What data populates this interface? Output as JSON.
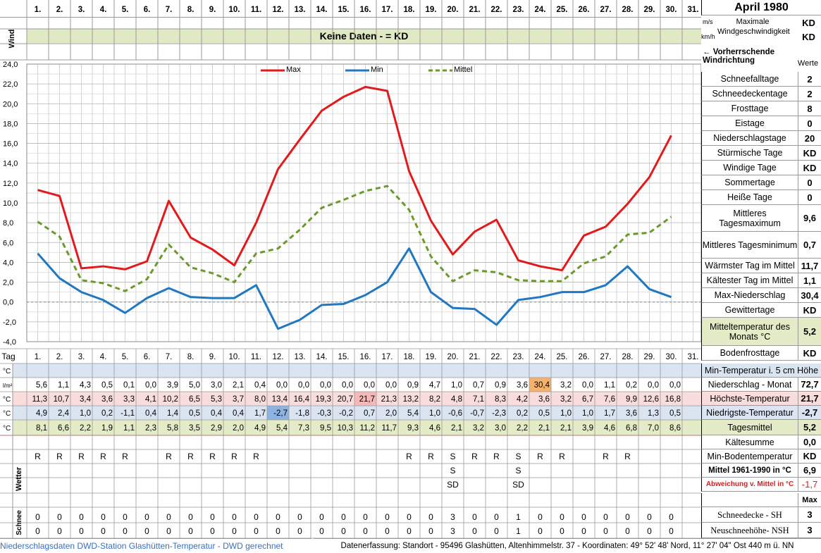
{
  "title": "April 1980",
  "days": [
    "1.",
    "2.",
    "3.",
    "4.",
    "5.",
    "6.",
    "7.",
    "8.",
    "9.",
    "10.",
    "11.",
    "12.",
    "13.",
    "14.",
    "15.",
    "16.",
    "17.",
    "18.",
    "19.",
    "20.",
    "21.",
    "22.",
    "23.",
    "24.",
    "25.",
    "26.",
    "27.",
    "28.",
    "29.",
    "30.",
    "31."
  ],
  "wind": {
    "side_label": "Wind",
    "banner": "Keine Daten -  = KD",
    "unit_ms": "m/s",
    "unit_kmh": "km/h",
    "max_label": "Maximale Windgeschwindigkeit",
    "max_ms": "KD",
    "max_kmh": "KD",
    "direction": "← Vorherrschende Windrichtung"
  },
  "chart_data": {
    "type": "line",
    "x": [
      1,
      2,
      3,
      4,
      5,
      6,
      7,
      8,
      9,
      10,
      11,
      12,
      13,
      14,
      15,
      16,
      17,
      18,
      19,
      20,
      21,
      22,
      23,
      24,
      25,
      26,
      27,
      28,
      29,
      30
    ],
    "ylim": [
      -4,
      24
    ],
    "yticks": [
      "24,0",
      "22,0",
      "20,0",
      "18,0",
      "16,0",
      "14,0",
      "12,0",
      "10,0",
      "8,0",
      "6,0",
      "4,0",
      "2,0",
      "0,0",
      "-2,0",
      "-4,0"
    ],
    "series": [
      {
        "name": "Max",
        "color": "#e31a1c",
        "style": "solid",
        "values": [
          11.3,
          10.7,
          3.4,
          3.6,
          3.3,
          4.1,
          10.2,
          6.5,
          5.3,
          3.7,
          8.0,
          13.4,
          16.4,
          19.3,
          20.7,
          21.7,
          21.3,
          13.2,
          8.2,
          4.8,
          7.1,
          8.3,
          4.2,
          3.6,
          3.2,
          6.7,
          7.6,
          9.9,
          12.6,
          16.8
        ]
      },
      {
        "name": "Min",
        "color": "#1f78c1",
        "style": "solid",
        "values": [
          4.9,
          2.4,
          1.0,
          0.2,
          -1.1,
          0.4,
          1.4,
          0.5,
          0.4,
          0.4,
          1.7,
          -2.7,
          -1.8,
          -0.3,
          -0.2,
          0.7,
          2.0,
          5.4,
          1.0,
          -0.6,
          -0.7,
          -2.3,
          0.2,
          0.5,
          1.0,
          1.0,
          1.7,
          3.6,
          1.3,
          0.5
        ]
      },
      {
        "name": "Mittel",
        "color": "#6a9a2a",
        "style": "dashed",
        "values": [
          8.1,
          6.6,
          2.2,
          1.9,
          1.1,
          2.3,
          5.8,
          3.5,
          2.9,
          2.0,
          4.9,
          5.4,
          7.3,
          9.5,
          10.3,
          11.2,
          11.7,
          9.3,
          4.6,
          2.1,
          3.2,
          3.0,
          2.2,
          2.1,
          2.1,
          3.9,
          4.6,
          6.8,
          7.0,
          8.6
        ]
      }
    ]
  },
  "table": {
    "tag_label": "Tag",
    "unit_c": "°C",
    "unit_lm2": "l/m²",
    "niederschlag": [
      "5,6",
      "1,1",
      "4,3",
      "0,5",
      "0,1",
      "0,0",
      "3,9",
      "5,0",
      "3,0",
      "2,1",
      "0,4",
      "0,0",
      "0,0",
      "0,0",
      "0,0",
      "0,0",
      "0,0",
      "0,9",
      "4,7",
      "1,0",
      "0,7",
      "0,9",
      "3,6",
      "30,4",
      "3,2",
      "0,0",
      "1,1",
      "0,2",
      "0,0",
      "0,0"
    ],
    "hoechst": [
      "11,3",
      "10,7",
      "3,4",
      "3,6",
      "3,3",
      "4,1",
      "10,2",
      "6,5",
      "5,3",
      "3,7",
      "8,0",
      "13,4",
      "16,4",
      "19,3",
      "20,7",
      "21,7",
      "21,3",
      "13,2",
      "8,2",
      "4,8",
      "7,1",
      "8,3",
      "4,2",
      "3,6",
      "3,2",
      "6,7",
      "7,6",
      "9,9",
      "12,6",
      "16,8"
    ],
    "niedrigst": [
      "4,9",
      "2,4",
      "1,0",
      "0,2",
      "-1,1",
      "0,4",
      "1,4",
      "0,5",
      "0,4",
      "0,4",
      "1,7",
      "-2,7",
      "-1,8",
      "-0,3",
      "-0,2",
      "0,7",
      "2,0",
      "5,4",
      "1,0",
      "-0,6",
      "-0,7",
      "-2,3",
      "0,2",
      "0,5",
      "1,0",
      "1,0",
      "1,7",
      "3,6",
      "1,3",
      "0,5"
    ],
    "mittel": [
      "8,1",
      "6,6",
      "2,2",
      "1,9",
      "1,1",
      "2,3",
      "5,8",
      "3,5",
      "2,9",
      "2,0",
      "4,9",
      "5,4",
      "7,3",
      "9,5",
      "10,3",
      "11,2",
      "11,7",
      "9,3",
      "4,6",
      "2,1",
      "3,2",
      "3,0",
      "2,2",
      "2,1",
      "2,1",
      "3,9",
      "4,6",
      "6,8",
      "7,0",
      "8,6"
    ],
    "wetter_side": "Wetter",
    "wetter1": [
      "R",
      "R",
      "R",
      "R",
      "R",
      "",
      "R",
      "R",
      "R",
      "R",
      "R",
      "",
      "",
      "",
      "",
      "",
      "",
      "R",
      "R",
      "S",
      "R",
      "R",
      "S",
      "R",
      "R",
      "",
      "R",
      "R",
      "",
      ""
    ],
    "wetter2": [
      "",
      "",
      "",
      "",
      "",
      "",
      "",
      "",
      "",
      "",
      "",
      "",
      "",
      "",
      "",
      "",
      "",
      "",
      "",
      "S",
      "",
      "",
      "S",
      "",
      "",
      "",
      "",
      "",
      "",
      ""
    ],
    "wetter3": [
      "",
      "",
      "",
      "",
      "",
      "",
      "",
      "",
      "",
      "",
      "",
      "",
      "",
      "",
      "",
      "",
      "",
      "",
      "",
      "SD",
      "",
      "",
      "SD",
      "",
      "",
      "",
      "",
      "",
      "",
      ""
    ],
    "schnee_side": "Schnee",
    "schneedecke": [
      "0",
      "0",
      "0",
      "0",
      "0",
      "0",
      "0",
      "0",
      "0",
      "0",
      "0",
      "0",
      "0",
      "0",
      "0",
      "0",
      "0",
      "0",
      "0",
      "3",
      "0",
      "0",
      "1",
      "0",
      "0",
      "0",
      "0",
      "0",
      "0",
      "0"
    ],
    "neuschnee": [
      "0",
      "0",
      "0",
      "0",
      "0",
      "0",
      "0",
      "0",
      "0",
      "0",
      "0",
      "0",
      "0",
      "0",
      "0",
      "0",
      "0",
      "0",
      "0",
      "3",
      "0",
      "0",
      "1",
      "0",
      "0",
      "0",
      "0",
      "0",
      "0",
      "0"
    ]
  },
  "stats": {
    "werte": "Werte",
    "items": [
      {
        "label": "Schneefalltage",
        "value": "2"
      },
      {
        "label": "Schneedeckentage",
        "value": "2"
      },
      {
        "label": "Frosttage",
        "value": "8"
      },
      {
        "label": "Eistage",
        "value": "0"
      },
      {
        "label": "Niederschlagstage",
        "value": "20"
      },
      {
        "label": "Stürmische Tage",
        "value": "KD"
      },
      {
        "label": "Windige Tage",
        "value": "KD"
      },
      {
        "label": "Sommertage",
        "value": "0"
      },
      {
        "label": "Heiße Tage",
        "value": "0"
      },
      {
        "label": "Mittleres Tagesmaximum",
        "value": "9,6"
      },
      {
        "label": "Mittleres Tagesminimum",
        "value": "0,7"
      },
      {
        "label": "Wärmster Tag im Mittel",
        "value": "11,7"
      },
      {
        "label": "Kältester Tag im Mittel",
        "value": "1,1"
      },
      {
        "label": "Max-Niederschlag",
        "value": "30,4"
      },
      {
        "label": "Gewittertage",
        "value": "KD"
      },
      {
        "label": "Mitteltemperatur des Monats °C",
        "value": "5,2"
      },
      {
        "label": "Bodenfrosttage",
        "value": "KD"
      }
    ],
    "min_temp_5cm": "Min-Temperatur i. 5 cm Höhe",
    "rows": [
      {
        "label": "Niederschlag - Monat",
        "value": "72,7"
      },
      {
        "label": "Höchste-Temperatur",
        "value": "21,7"
      },
      {
        "label": "Niedrigste-Temperatur",
        "value": "-2,7"
      },
      {
        "label": "Tagesmittel",
        "value": "5,2"
      },
      {
        "label": "Kältesumme",
        "value": "0,0"
      },
      {
        "label": "Min-Bodentemperatur",
        "value": "KD"
      },
      {
        "label": "Mittel 1961-1990 in °C",
        "value": "6,9"
      },
      {
        "label": "Abweichung v. Mittel in °C",
        "value": "-1,7"
      }
    ],
    "max_label": "Max",
    "schnee_rows": [
      {
        "label": "Schneedecke -   SH",
        "value": "3"
      },
      {
        "label": "Neuschneehöhe- NSH",
        "value": "3"
      }
    ]
  },
  "footer": {
    "left": "Niederschlagsdaten DWD-Station Glashütten-Temperatur -   DWD gerechnet",
    "right": "Datenerfassung: Standort -  95496  Glashütten, Altenhimmelstr. 37 - Koordinaten:  49° 52' 48' Nord,  11° 27' 04\" Ost   440 m ü. NN"
  },
  "colors": {
    "max": "#e31a1c",
    "min": "#1f78c1",
    "mittel": "#6a9a2a",
    "banner": "#dfeac4",
    "row_temp": "#dbe5f1",
    "row_max": "#f9dcdc",
    "row_min": "#dbe5f1",
    "row_mean": "#e3ecc6",
    "hl_max": "#f4b8b8",
    "hl_min": "#8db3e2",
    "hl_rain": "#f6b26b"
  }
}
